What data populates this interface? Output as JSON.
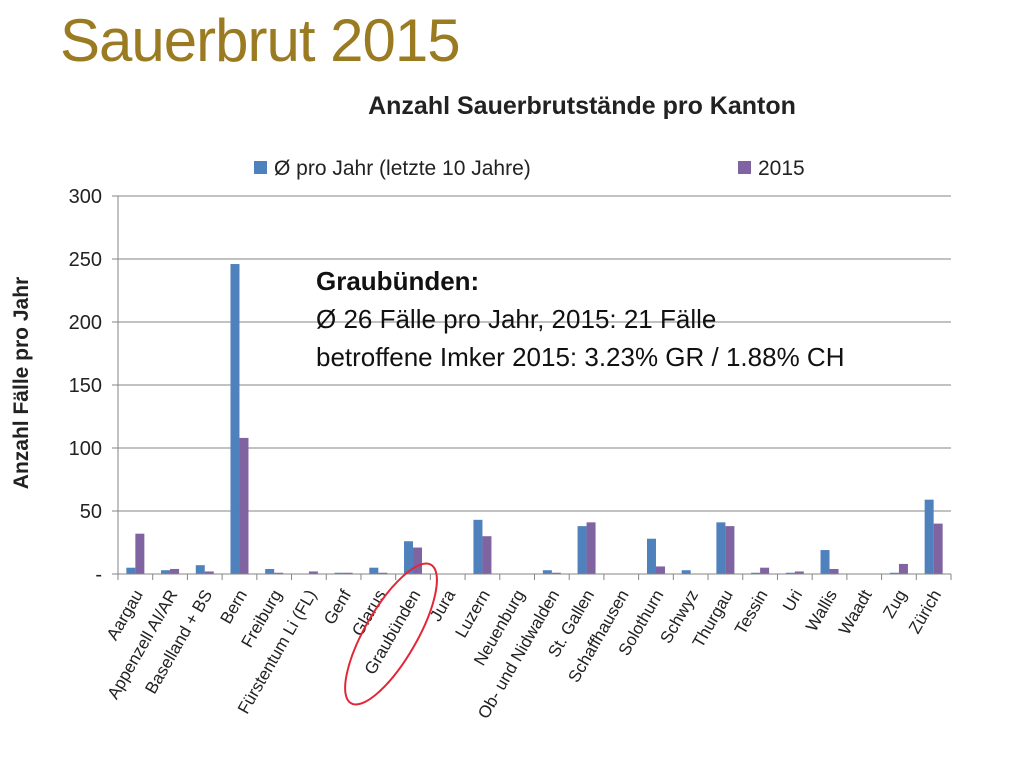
{
  "slide": {
    "title": "Sauerbrut 2015"
  },
  "annotation": {
    "title": "Graubünden:",
    "line1": "Ø 26 Fälle pro Jahr, 2015: 21 Fälle",
    "line2": "betroffene Imker 2015: 3.23% GR / 1.88% CH"
  },
  "colors": {
    "series1": "#4F81BD",
    "series2": "#8064A2",
    "highlight": "#E32636",
    "title": "#9B7B22"
  },
  "chart_data": {
    "type": "bar",
    "title": "Anzahl Sauerbrutstände pro Kanton",
    "xlabel": "",
    "ylabel": "Anzahl Fälle pro Jahr",
    "ylim": [
      0,
      300
    ],
    "yticks": [
      0,
      50,
      100,
      150,
      200,
      250,
      300
    ],
    "ytick_labels": [
      "-",
      "50",
      "100",
      "150",
      "200",
      "250",
      "300"
    ],
    "grid": true,
    "legend": "top",
    "highlighted_category": "Graubünden",
    "categories": [
      "Aargau",
      "Appenzell AI/AR",
      "Baselland + BS",
      "Bern",
      "Freiburg",
      "Fürstentum Li (FL)",
      "Genf",
      "Glarus",
      "Graubünden",
      "Jura",
      "Luzern",
      "Neuenburg",
      "Ob- und Nidwalden",
      "St. Gallen",
      "Schaffhausen",
      "Solothurn",
      "Schwyz",
      "Thurgau",
      "Tessin",
      "Uri",
      "Wallis",
      "Waadt",
      "Zug",
      "Zürich"
    ],
    "series": [
      {
        "name": "Ø pro Jahr (letzte 10 Jahre)",
        "values": [
          5,
          3,
          7,
          246,
          4,
          0,
          1,
          5,
          26,
          0,
          43,
          0,
          3,
          38,
          0,
          28,
          3,
          41,
          1,
          1,
          19,
          0,
          1,
          59
        ]
      },
      {
        "name": "2015",
        "values": [
          32,
          4,
          2,
          108,
          1,
          2,
          1,
          1,
          21,
          0,
          30,
          0,
          1,
          41,
          0,
          6,
          0,
          38,
          5,
          2,
          4,
          0,
          8,
          40
        ]
      }
    ]
  }
}
